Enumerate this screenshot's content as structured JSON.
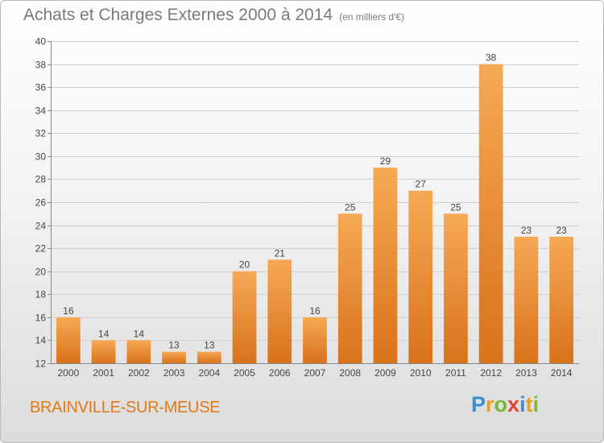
{
  "title": "Achats et Charges Externes 2000 à 2014",
  "unit_note": "(en milliers d'€)",
  "commune": "BRAINVILLE-SUR-MEUSE",
  "logo": {
    "letters": [
      "P",
      "r",
      "o",
      "x",
      "i",
      "t",
      "i"
    ],
    "colors": [
      "#3a8fd6",
      "#e7a21c",
      "#7ab83a",
      "#e1443a",
      "#3a8fd6",
      "#e7a21c",
      "#7ab83a"
    ]
  },
  "colors": {
    "bar_top": "#f6a955",
    "bar_bottom": "#d8721b",
    "grid": "#cfcfcf",
    "axis_text": "#444444",
    "title_text": "#7a7a7a",
    "commune_text": "#e07a16"
  },
  "chart_data": {
    "type": "bar",
    "categories": [
      "2000",
      "2001",
      "2002",
      "2003",
      "2004",
      "2005",
      "2006",
      "2007",
      "2008",
      "2009",
      "2010",
      "2011",
      "2012",
      "2013",
      "2014"
    ],
    "values": [
      16,
      14,
      14,
      13,
      13,
      20,
      21,
      16,
      25,
      29,
      27,
      25,
      38,
      23,
      23
    ],
    "data_labels": [
      "16",
      "14",
      "14",
      "13",
      "13",
      "20",
      "21",
      "16",
      "25",
      "29",
      "27",
      "25",
      "38",
      "23",
      "23"
    ],
    "ylim": [
      12,
      40
    ],
    "yticks": [
      12,
      14,
      16,
      18,
      20,
      22,
      24,
      26,
      28,
      30,
      32,
      34,
      36,
      38,
      40
    ],
    "grid": "horizontal",
    "legend": "none"
  }
}
